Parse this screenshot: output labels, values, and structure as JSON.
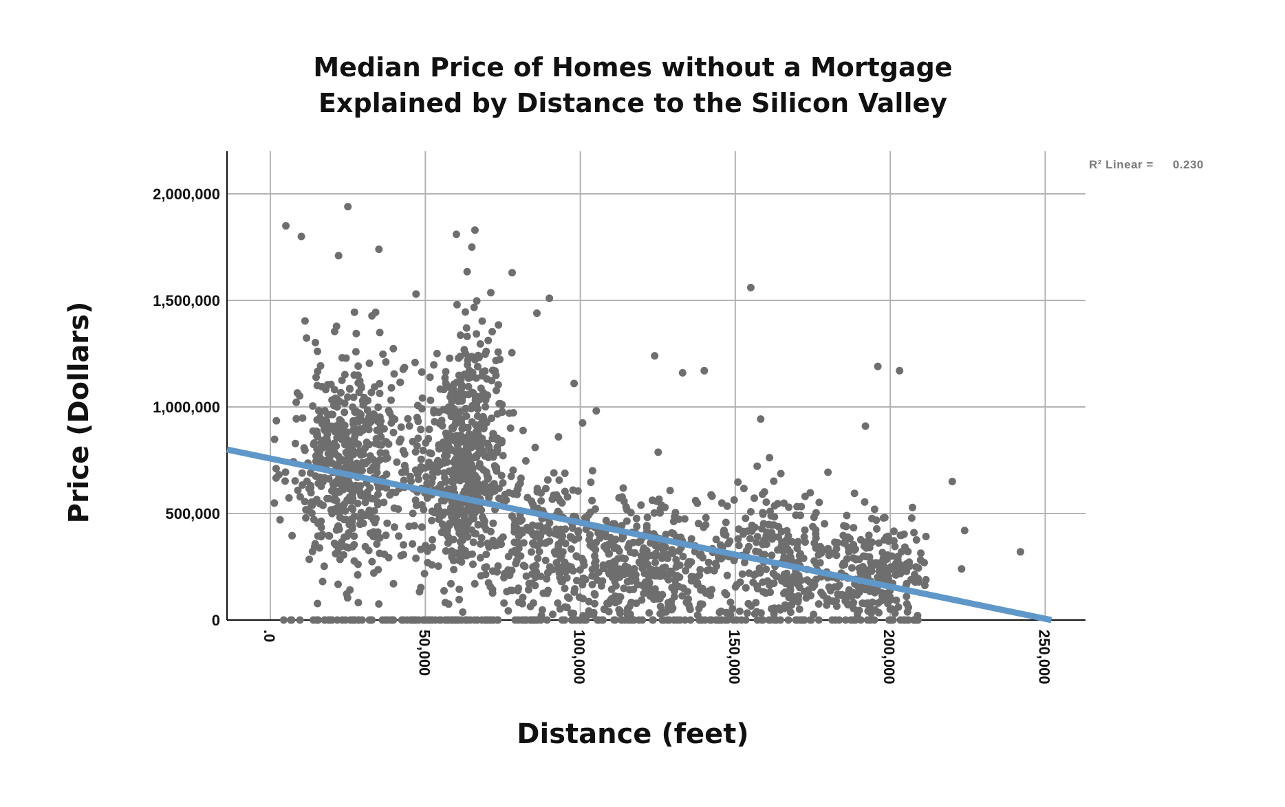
{
  "chart_data": {
    "type": "scatter",
    "title": [
      "Median Price of Homes without a Mortgage",
      "Explained by Distance to the Silicon Valley"
    ],
    "xlabel": "Distance (feet)",
    "ylabel": "Price (Dollars)",
    "xlim": [
      -14000,
      263000
    ],
    "ylim": [
      0,
      2200000
    ],
    "x_ticks": [
      0,
      50000,
      100000,
      150000,
      200000,
      250000
    ],
    "x_tick_labels": [
      ".0",
      "50,000",
      "100,000",
      "150,000",
      "200,000",
      "250,000"
    ],
    "y_ticks": [
      0,
      500000,
      1000000,
      1500000,
      2000000
    ],
    "y_tick_labels": [
      "0",
      "500,000",
      "1,000,000",
      "1,500,000",
      "2,000,000"
    ],
    "grid": true,
    "point_color": "#6e6e6e",
    "fit_line": {
      "type": "linear",
      "color": "#5f97c9",
      "points": [
        [
          -14000,
          800000
        ],
        [
          252000,
          0
        ]
      ],
      "r2_label": "R² Linear =",
      "r2_value": "0.230"
    },
    "point_clusters": [
      {
        "cx": 25000,
        "cy": 700000,
        "sx": 9000,
        "sy": 250000,
        "n": 520
      },
      {
        "cx": 60000,
        "cy": 700000,
        "sx": 7000,
        "sy": 260000,
        "n": 420
      },
      {
        "cx": 66000,
        "cy": 900000,
        "sx": 5000,
        "sy": 350000,
        "n": 160
      },
      {
        "cx": 85000,
        "cy": 400000,
        "sx": 10000,
        "sy": 200000,
        "n": 220
      },
      {
        "cx": 120000,
        "cy": 250000,
        "sx": 14000,
        "sy": 150000,
        "n": 380
      },
      {
        "cx": 165000,
        "cy": 300000,
        "sx": 12000,
        "sy": 170000,
        "n": 260
      },
      {
        "cx": 195000,
        "cy": 250000,
        "sx": 9000,
        "sy": 120000,
        "n": 220
      }
    ],
    "zero_row": {
      "x_min": 3000,
      "x_max": 210000,
      "n": 200
    },
    "outliers": [
      [
        5000,
        1850000
      ],
      [
        25000,
        1940000
      ],
      [
        10000,
        1800000
      ],
      [
        22000,
        1710000
      ],
      [
        60000,
        1810000
      ],
      [
        66000,
        1830000
      ],
      [
        65000,
        1750000
      ],
      [
        90000,
        1510000
      ],
      [
        155000,
        1560000
      ],
      [
        140000,
        1170000
      ],
      [
        133000,
        1160000
      ],
      [
        124000,
        1240000
      ],
      [
        196000,
        1190000
      ],
      [
        203000,
        1170000
      ],
      [
        192000,
        910000
      ],
      [
        220000,
        650000
      ],
      [
        224000,
        420000
      ],
      [
        242000,
        320000
      ],
      [
        223000,
        240000
      ],
      [
        78000,
        1630000
      ],
      [
        35000,
        1740000
      ],
      [
        47000,
        1530000
      ],
      [
        86000,
        1440000
      ],
      [
        98000,
        1110000
      ]
    ]
  }
}
